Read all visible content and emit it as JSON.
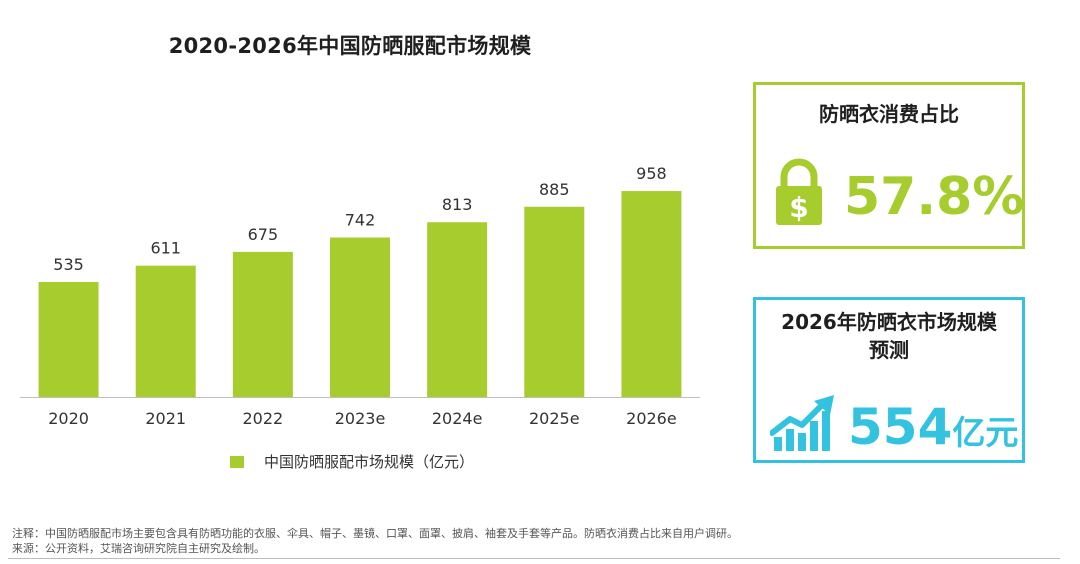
{
  "chart_data": {
    "type": "bar",
    "title": "2020-2026年中国防晒服配市场规模",
    "categories": [
      "2020",
      "2021",
      "2022",
      "2023e",
      "2024e",
      "2025e",
      "2026e"
    ],
    "series": [
      {
        "name": "中国防晒服配市场规模（亿元）",
        "values": [
          535,
          611,
          675,
          742,
          813,
          885,
          958
        ]
      }
    ],
    "ylim": [
      0,
      1100
    ],
    "grid": false,
    "legend": "bottom",
    "bar_color": "#a6cc2e"
  },
  "share_card": {
    "title": "防晒衣消费占比",
    "value": "57.8%",
    "icon": "lock-dollar-icon",
    "color": "#a6cc2e"
  },
  "forecast_card": {
    "title_line1": "2026年防晒衣市场规模",
    "title_line2": "预测",
    "value": "554",
    "unit": "亿元",
    "icon": "growth-chart-icon",
    "color": "#33c3e0"
  },
  "footnote": {
    "note": "注释：中国防晒服配市场主要包含具有防晒功能的衣服、伞具、帽子、墨镜、口罩、面罩、披肩、袖套及手套等产品。防晒衣消费占比来自用户调研。",
    "source": "来源：公开资料，艾瑞咨询研究院自主研究及绘制。"
  }
}
